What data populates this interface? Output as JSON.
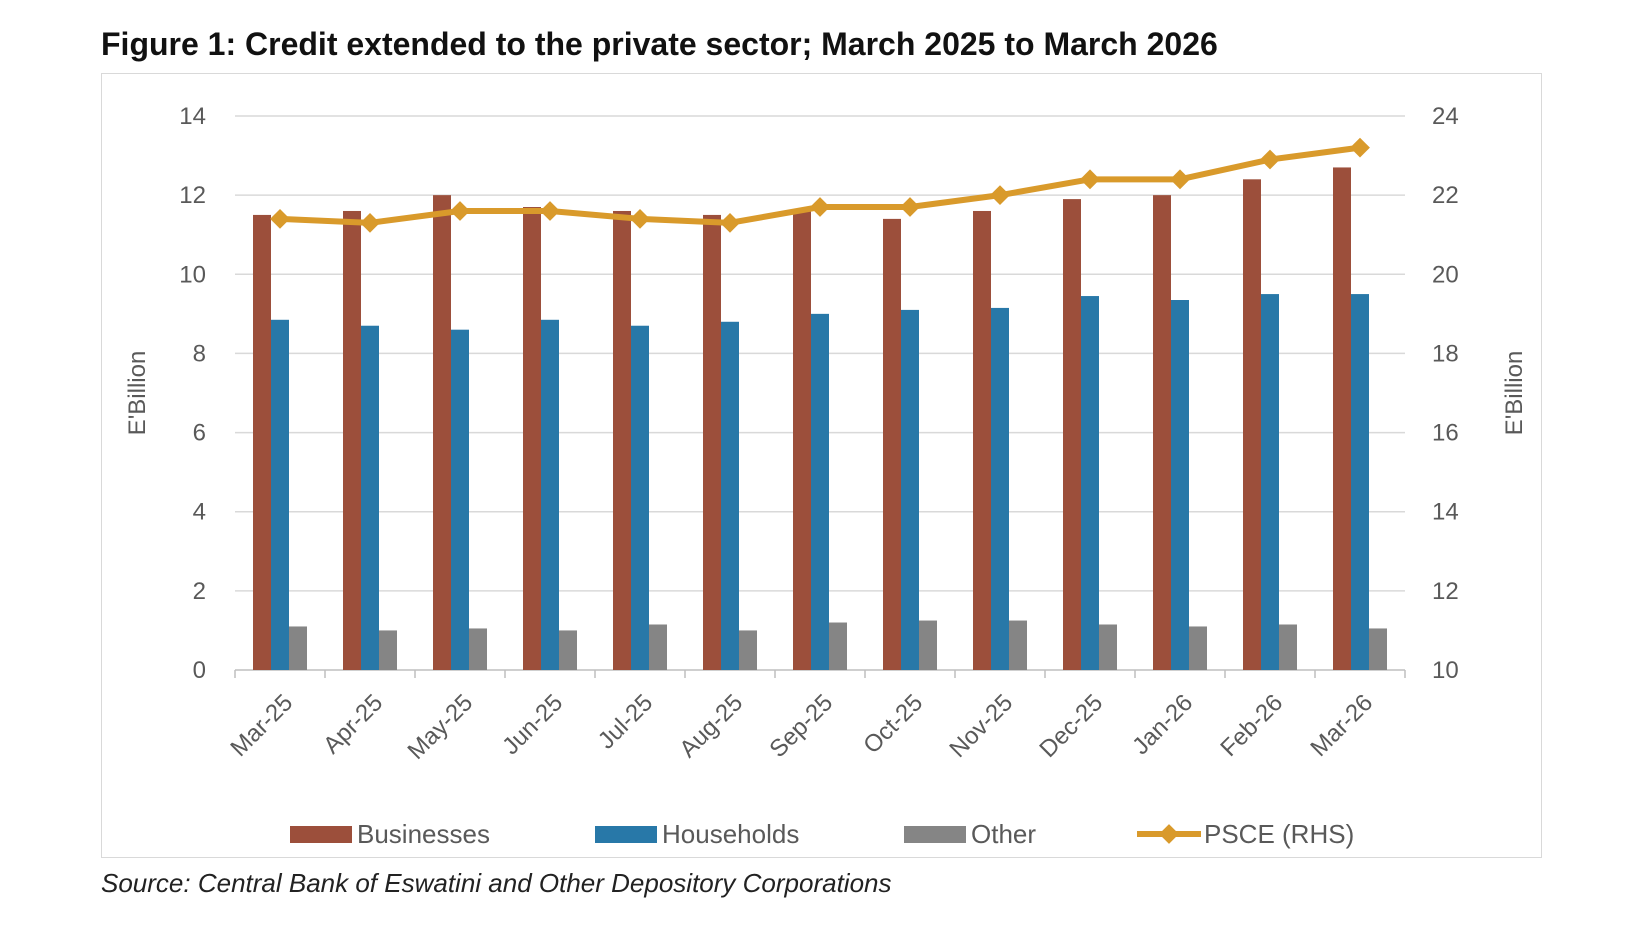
{
  "figure": {
    "title": "Figure 1: Credit extended to the private sector; March 2025 to March 2026",
    "source": "Source: Central Bank of Eswatini and Other Depository Corporations"
  },
  "colors": {
    "businesses": "#9c4f3b",
    "households": "#2878a8",
    "other": "#858585",
    "psce": "#d99a2b",
    "grid": "#d9d9d9",
    "axis_text": "#595959"
  },
  "chart_data": {
    "type": "bar",
    "categories": [
      "Mar-25",
      "Apr-25",
      "May-25",
      "Jun-25",
      "Jul-25",
      "Aug-25",
      "Sep-25",
      "Oct-25",
      "Nov-25",
      "Dec-25",
      "Jan-26",
      "Feb-26",
      "Mar-26"
    ],
    "series": [
      {
        "name": "Businesses",
        "type": "bar",
        "axis": "left",
        "values": [
          11.5,
          11.6,
          12.0,
          11.7,
          11.6,
          11.5,
          11.6,
          11.4,
          11.6,
          11.9,
          12.0,
          12.4,
          12.7
        ]
      },
      {
        "name": "Households",
        "type": "bar",
        "axis": "left",
        "values": [
          8.85,
          8.7,
          8.6,
          8.85,
          8.7,
          8.8,
          9.0,
          9.1,
          9.15,
          9.45,
          9.35,
          9.5,
          9.5
        ]
      },
      {
        "name": "Other",
        "type": "bar",
        "axis": "left",
        "values": [
          1.1,
          1.0,
          1.05,
          1.0,
          1.15,
          1.0,
          1.2,
          1.25,
          1.25,
          1.15,
          1.1,
          1.15,
          1.05
        ]
      },
      {
        "name": "PSCE (RHS)",
        "type": "line",
        "axis": "right",
        "values": [
          21.4,
          21.3,
          21.6,
          21.6,
          21.4,
          21.3,
          21.7,
          21.7,
          22.0,
          22.4,
          22.4,
          22.9,
          23.2
        ]
      }
    ],
    "ylabel": "E'Billion",
    "y2label": "E'Billion",
    "ylim": [
      0,
      14
    ],
    "y2lim": [
      10,
      24
    ],
    "yticks": [
      "0",
      "2",
      "4",
      "6",
      "8",
      "10",
      "12",
      "14"
    ],
    "y2ticks": [
      "10",
      "12",
      "14",
      "16",
      "18",
      "20",
      "22",
      "24"
    ],
    "grid": true,
    "legend_position": "bottom"
  }
}
